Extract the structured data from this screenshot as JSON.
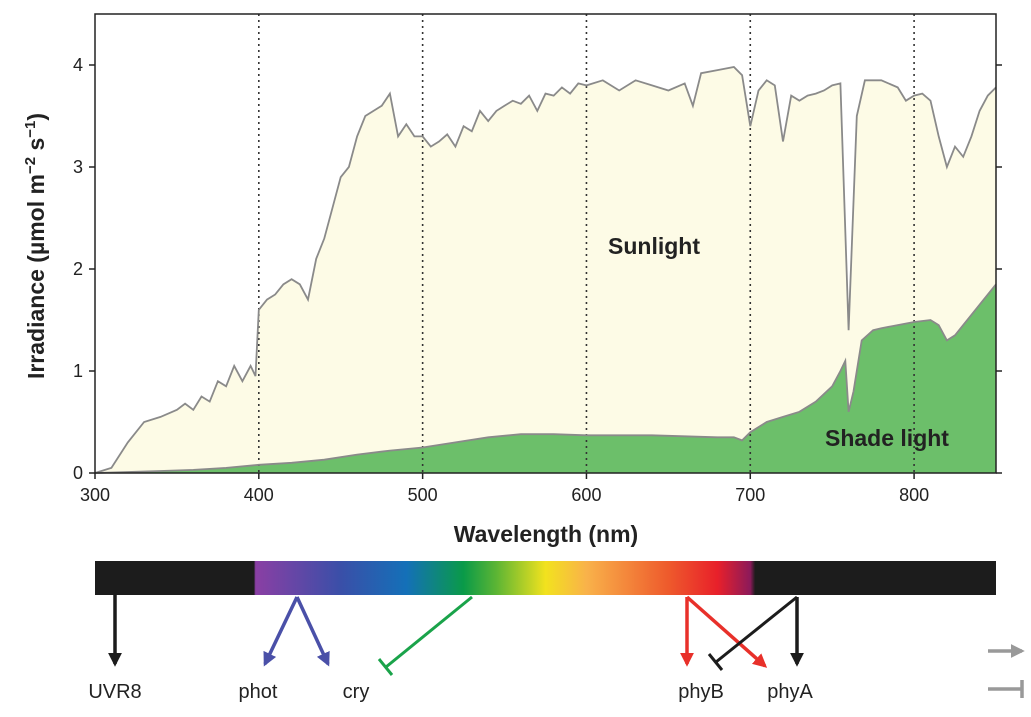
{
  "chart_data": {
    "type": "area",
    "xlabel": "Wavelength (nm)",
    "ylabel_main": "Irradiance (µmol m",
    "ylabel_exp1": "−2",
    "ylabel_mid": " s",
    "ylabel_exp2": "−1",
    "ylabel_end": ")",
    "xlim": [
      300,
      850
    ],
    "ylim": [
      0,
      4.5
    ],
    "xticks": [
      "300",
      "400",
      "500",
      "600",
      "700",
      "800"
    ],
    "yticks": [
      "0",
      "1",
      "2",
      "3",
      "4"
    ],
    "grid": "vertical dotted at 400, 500, 600, 700, 800",
    "colors": {
      "sunlight": "#fdfbe6",
      "shade": "#6cbf6a",
      "outline": "#8a8a8a"
    },
    "annotations": {
      "sunlight": "Sunlight",
      "shade": "Shade light"
    },
    "series": [
      {
        "name": "Sunlight",
        "points": [
          [
            300,
            0
          ],
          [
            310,
            0.05
          ],
          [
            320,
            0.3
          ],
          [
            330,
            0.5
          ],
          [
            340,
            0.55
          ],
          [
            350,
            0.62
          ],
          [
            355,
            0.68
          ],
          [
            360,
            0.62
          ],
          [
            365,
            0.75
          ],
          [
            370,
            0.7
          ],
          [
            375,
            0.9
          ],
          [
            380,
            0.85
          ],
          [
            385,
            1.05
          ],
          [
            390,
            0.9
          ],
          [
            395,
            1.05
          ],
          [
            398,
            0.95
          ],
          [
            400,
            1.6
          ],
          [
            405,
            1.7
          ],
          [
            410,
            1.75
          ],
          [
            415,
            1.85
          ],
          [
            420,
            1.9
          ],
          [
            425,
            1.85
          ],
          [
            430,
            1.7
          ],
          [
            435,
            2.1
          ],
          [
            440,
            2.3
          ],
          [
            445,
            2.6
          ],
          [
            450,
            2.9
          ],
          [
            455,
            3.0
          ],
          [
            460,
            3.3
          ],
          [
            465,
            3.5
          ],
          [
            470,
            3.55
          ],
          [
            475,
            3.6
          ],
          [
            480,
            3.72
          ],
          [
            485,
            3.3
          ],
          [
            490,
            3.42
          ],
          [
            495,
            3.3
          ],
          [
            500,
            3.3
          ],
          [
            505,
            3.2
          ],
          [
            510,
            3.25
          ],
          [
            515,
            3.32
          ],
          [
            520,
            3.2
          ],
          [
            525,
            3.4
          ],
          [
            530,
            3.35
          ],
          [
            535,
            3.55
          ],
          [
            540,
            3.45
          ],
          [
            545,
            3.55
          ],
          [
            550,
            3.6
          ],
          [
            555,
            3.65
          ],
          [
            560,
            3.62
          ],
          [
            565,
            3.7
          ],
          [
            570,
            3.55
          ],
          [
            575,
            3.72
          ],
          [
            580,
            3.7
          ],
          [
            585,
            3.78
          ],
          [
            590,
            3.72
          ],
          [
            595,
            3.82
          ],
          [
            600,
            3.8
          ],
          [
            610,
            3.85
          ],
          [
            620,
            3.75
          ],
          [
            630,
            3.85
          ],
          [
            640,
            3.8
          ],
          [
            650,
            3.75
          ],
          [
            660,
            3.82
          ],
          [
            665,
            3.6
          ],
          [
            670,
            3.92
          ],
          [
            680,
            3.95
          ],
          [
            690,
            3.98
          ],
          [
            695,
            3.9
          ],
          [
            700,
            3.4
          ],
          [
            705,
            3.75
          ],
          [
            710,
            3.85
          ],
          [
            715,
            3.8
          ],
          [
            720,
            3.25
          ],
          [
            725,
            3.7
          ],
          [
            730,
            3.65
          ],
          [
            735,
            3.7
          ],
          [
            740,
            3.72
          ],
          [
            745,
            3.75
          ],
          [
            750,
            3.8
          ],
          [
            755,
            3.82
          ],
          [
            760,
            1.4
          ],
          [
            765,
            3.5
          ],
          [
            770,
            3.85
          ],
          [
            780,
            3.85
          ],
          [
            790,
            3.78
          ],
          [
            795,
            3.65
          ],
          [
            800,
            3.7
          ],
          [
            805,
            3.72
          ],
          [
            810,
            3.65
          ],
          [
            815,
            3.3
          ],
          [
            820,
            3.0
          ],
          [
            825,
            3.2
          ],
          [
            830,
            3.1
          ],
          [
            835,
            3.3
          ],
          [
            840,
            3.55
          ],
          [
            845,
            3.7
          ],
          [
            850,
            3.78
          ]
        ]
      },
      {
        "name": "Shade light",
        "points": [
          [
            300,
            0
          ],
          [
            320,
            0.01
          ],
          [
            340,
            0.02
          ],
          [
            360,
            0.03
          ],
          [
            380,
            0.05
          ],
          [
            400,
            0.08
          ],
          [
            420,
            0.1
          ],
          [
            440,
            0.13
          ],
          [
            460,
            0.18
          ],
          [
            480,
            0.22
          ],
          [
            500,
            0.25
          ],
          [
            520,
            0.3
          ],
          [
            540,
            0.35
          ],
          [
            560,
            0.38
          ],
          [
            580,
            0.38
          ],
          [
            600,
            0.37
          ],
          [
            620,
            0.37
          ],
          [
            640,
            0.37
          ],
          [
            660,
            0.36
          ],
          [
            680,
            0.35
          ],
          [
            690,
            0.35
          ],
          [
            695,
            0.32
          ],
          [
            700,
            0.4
          ],
          [
            710,
            0.5
          ],
          [
            720,
            0.55
          ],
          [
            730,
            0.6
          ],
          [
            740,
            0.7
          ],
          [
            750,
            0.85
          ],
          [
            755,
            1.0
          ],
          [
            758,
            1.1
          ],
          [
            760,
            0.6
          ],
          [
            763,
            0.8
          ],
          [
            768,
            1.3
          ],
          [
            775,
            1.4
          ],
          [
            780,
            1.42
          ],
          [
            790,
            1.45
          ],
          [
            800,
            1.48
          ],
          [
            810,
            1.5
          ],
          [
            815,
            1.45
          ],
          [
            820,
            1.3
          ],
          [
            825,
            1.35
          ],
          [
            830,
            1.45
          ],
          [
            840,
            1.65
          ],
          [
            850,
            1.85
          ]
        ]
      }
    ],
    "spectrum_bar": {
      "stops": [
        {
          "nm": 300,
          "color": "#1c1c1c"
        },
        {
          "nm": 397,
          "color": "#1c1c1c"
        },
        {
          "nm": 398,
          "color": "#8a3fa4"
        },
        {
          "nm": 450,
          "color": "#3a4fa8"
        },
        {
          "nm": 490,
          "color": "#1470b8"
        },
        {
          "nm": 525,
          "color": "#0a9a48"
        },
        {
          "nm": 545,
          "color": "#5cb534"
        },
        {
          "nm": 575,
          "color": "#f2e21e"
        },
        {
          "nm": 600,
          "color": "#f9b24a"
        },
        {
          "nm": 650,
          "color": "#ee5a2c"
        },
        {
          "nm": 680,
          "color": "#e8202a"
        },
        {
          "nm": 700,
          "color": "#8c1a5a"
        },
        {
          "nm": 703,
          "color": "#1c1c1c"
        },
        {
          "nm": 850,
          "color": "#1c1c1c"
        }
      ]
    },
    "receptors": [
      {
        "label": "UVR8",
        "nm": 300
      },
      {
        "label": "phot",
        "nm": 420
      },
      {
        "label": "cry",
        "nm": 463
      },
      {
        "label": "phyB",
        "nm": 660
      },
      {
        "label": "phyA",
        "nm": 730
      }
    ],
    "legend_colors": {
      "blue_light": "#4a50a8",
      "green_light": "#1aa34a",
      "red_light": "#e8302a",
      "far_red": "#1c1c1c",
      "legend_symbols": "#999999"
    }
  }
}
